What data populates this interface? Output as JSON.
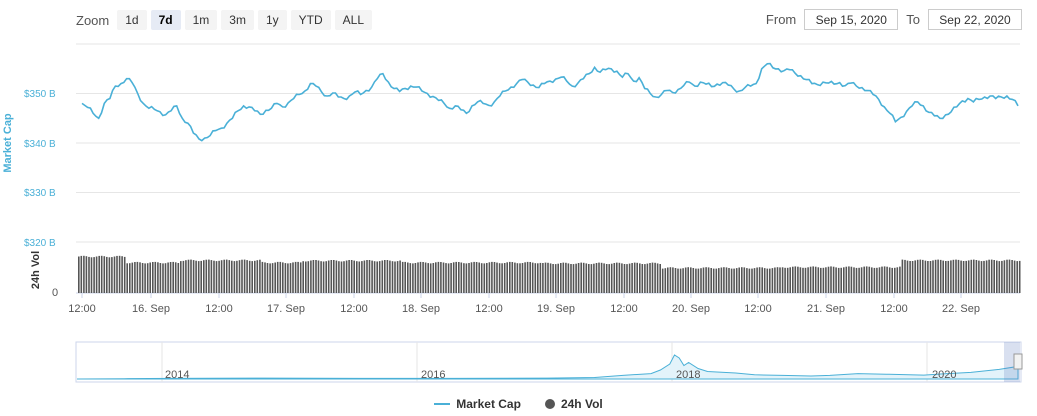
{
  "zoom": {
    "label": "Zoom",
    "buttons": [
      "1d",
      "7d",
      "1m",
      "3m",
      "1y",
      "YTD",
      "ALL"
    ],
    "active": "7d"
  },
  "range": {
    "from_label": "From",
    "from_value": "Sep 15, 2020",
    "to_label": "To",
    "to_value": "Sep 22, 2020"
  },
  "colors": {
    "market_cap": "#4ab0d7",
    "volume": "#555555"
  },
  "chart_data": [
    {
      "type": "line",
      "ylabel": "Market Cap",
      "yticks": [
        "$320 B",
        "$330 B",
        "$340 B",
        "$350 B"
      ],
      "ylim": [
        320,
        360
      ],
      "x_ticks": [
        "12:00",
        "16. Sep",
        "12:00",
        "17. Sep",
        "12:00",
        "18. Sep",
        "12:00",
        "19. Sep",
        "12:00",
        "20. Sep",
        "12:00",
        "21. Sep",
        "12:00",
        "22. Sep"
      ],
      "x_range_hours": [
        0,
        168
      ],
      "series": [
        {
          "name": "Market Cap",
          "points": [
            [
              0,
              348
            ],
            [
              1,
              347.2
            ],
            [
              2,
              346
            ],
            [
              3,
              345
            ],
            [
              4,
              348
            ],
            [
              5,
              349
            ],
            [
              6,
              351.5
            ],
            [
              7,
              352
            ],
            [
              8,
              353
            ],
            [
              9,
              352.2
            ],
            [
              10,
              350
            ],
            [
              11,
              348
            ],
            [
              12,
              347
            ],
            [
              13,
              346.8
            ],
            [
              14,
              346.3
            ],
            [
              15,
              345.7
            ],
            [
              16,
              346.5
            ],
            [
              17,
              347.5
            ],
            [
              18,
              345
            ],
            [
              19,
              344
            ],
            [
              20,
              342
            ],
            [
              21,
              340.8
            ],
            [
              22,
              341
            ],
            [
              23,
              341.5
            ],
            [
              24,
              342.5
            ],
            [
              25,
              343
            ],
            [
              26,
              344
            ],
            [
              27,
              345
            ],
            [
              28,
              346.5
            ],
            [
              29,
              347.5
            ],
            [
              30,
              347.3
            ],
            [
              31,
              346.5
            ],
            [
              32,
              345.8
            ],
            [
              33,
              346.6
            ],
            [
              34,
              347
            ],
            [
              35,
              348
            ],
            [
              36,
              347.3
            ],
            [
              37,
              348.1
            ],
            [
              38,
              349
            ],
            [
              39,
              349.8
            ],
            [
              40,
              350.5
            ],
            [
              41,
              352
            ],
            [
              42,
              351.5
            ],
            [
              43,
              350.3
            ],
            [
              44,
              349.5
            ],
            [
              45,
              350.1
            ],
            [
              46,
              349.3
            ],
            [
              47,
              349
            ],
            [
              48,
              349.5
            ],
            [
              49,
              350.3
            ],
            [
              50,
              349.8
            ],
            [
              51,
              350.6
            ],
            [
              52,
              351.3
            ],
            [
              53,
              353
            ],
            [
              54,
              354
            ],
            [
              55,
              352.3
            ],
            [
              56,
              351
            ],
            [
              57,
              350.4
            ],
            [
              58,
              351
            ],
            [
              59,
              351.5
            ],
            [
              60,
              351.3
            ],
            [
              61,
              350.5
            ],
            [
              62,
              350
            ],
            [
              63,
              349.4
            ],
            [
              64,
              348.6
            ],
            [
              65,
              348
            ],
            [
              66,
              347
            ],
            [
              67,
              347.5
            ],
            [
              68,
              346.7
            ],
            [
              69,
              346
            ],
            [
              70,
              347.5
            ],
            [
              71,
              348.3
            ],
            [
              72,
              348
            ],
            [
              73,
              347.6
            ],
            [
              74,
              348.3
            ],
            [
              75,
              349.5
            ],
            [
              76,
              350.5
            ],
            [
              77,
              351.3
            ],
            [
              78,
              352
            ],
            [
              79,
              352.8
            ],
            [
              80,
              352.3
            ],
            [
              81,
              351.7
            ],
            [
              82,
              351.2
            ],
            [
              83,
              352
            ],
            [
              84,
              352.5
            ],
            [
              85,
              352.9
            ],
            [
              86,
              353.3
            ],
            [
              87,
              352.5
            ],
            [
              88,
              351.5
            ],
            [
              89,
              352.1
            ],
            [
              90,
              353
            ],
            [
              91,
              354
            ],
            [
              92,
              355.3
            ],
            [
              93,
              354.3
            ],
            [
              94,
              354.8
            ],
            [
              95,
              355
            ],
            [
              96,
              354.5
            ],
            [
              97,
              353.3
            ],
            [
              98,
              354
            ],
            [
              99,
              352.5
            ],
            [
              100,
              353.2
            ],
            [
              101,
              351
            ],
            [
              102,
              350
            ],
            [
              103,
              349.3
            ],
            [
              104,
              349.8
            ],
            [
              105,
              350.6
            ],
            [
              106,
              350.2
            ],
            [
              107,
              350.8
            ],
            [
              108,
              351.6
            ],
            [
              109,
              352.3
            ],
            [
              110,
              351.5
            ],
            [
              111,
              352.3
            ],
            [
              112,
              351.9
            ],
            [
              113,
              351.4
            ],
            [
              114,
              351.9
            ],
            [
              115,
              352.2
            ],
            [
              116,
              351.7
            ],
            [
              117,
              350.9
            ],
            [
              118,
              350.5
            ],
            [
              119,
              351.2
            ],
            [
              120,
              351.5
            ],
            [
              121,
              352
            ],
            [
              122,
              355
            ],
            [
              123,
              356
            ],
            [
              124,
              355.2
            ],
            [
              125,
              355
            ],
            [
              126,
              354.6
            ],
            [
              127,
              354.8
            ],
            [
              128,
              354.1
            ],
            [
              129,
              353.6
            ],
            [
              130,
              352.8
            ],
            [
              131,
              352
            ],
            [
              132,
              351.8
            ],
            [
              133,
              352.3
            ],
            [
              134,
              352.1
            ],
            [
              135,
              351.9
            ],
            [
              136,
              352.2
            ],
            [
              137,
              351.6
            ],
            [
              138,
              352.1
            ],
            [
              139,
              351.5
            ],
            [
              140,
              351.2
            ],
            [
              141,
              350.6
            ],
            [
              142,
              349.8
            ],
            [
              143,
              348.8
            ],
            [
              144,
              347.3
            ],
            [
              145,
              346
            ],
            [
              146,
              344.3
            ],
            [
              147,
              345.2
            ],
            [
              148,
              346.4
            ],
            [
              149,
              347.5
            ],
            [
              150,
              348.3
            ],
            [
              151,
              347.5
            ],
            [
              152,
              346.2
            ],
            [
              153,
              345.5
            ],
            [
              154,
              345
            ],
            [
              155,
              345.7
            ],
            [
              156,
              346.3
            ],
            [
              157,
              347.3
            ],
            [
              158,
              348.5
            ],
            [
              159,
              349
            ],
            [
              160,
              348.3
            ],
            [
              161,
              348.8
            ],
            [
              162,
              349.3
            ],
            [
              163,
              349.5
            ],
            [
              164,
              349
            ],
            [
              165,
              349.3
            ],
            [
              166,
              349.5
            ],
            [
              167,
              348.8
            ],
            [
              168,
              347.5
            ]
          ]
        }
      ]
    },
    {
      "type": "bar",
      "ylabel": "24h Vol",
      "yticks": [
        "0"
      ],
      "series": [
        {
          "name": "24h Vol",
          "baseline_level": 0.85
        }
      ]
    },
    {
      "type": "area",
      "x_ticks": [
        "2014",
        "2016",
        "2018",
        "2020"
      ]
    }
  ],
  "legend": {
    "items": [
      "Market Cap",
      "24h Vol"
    ]
  }
}
